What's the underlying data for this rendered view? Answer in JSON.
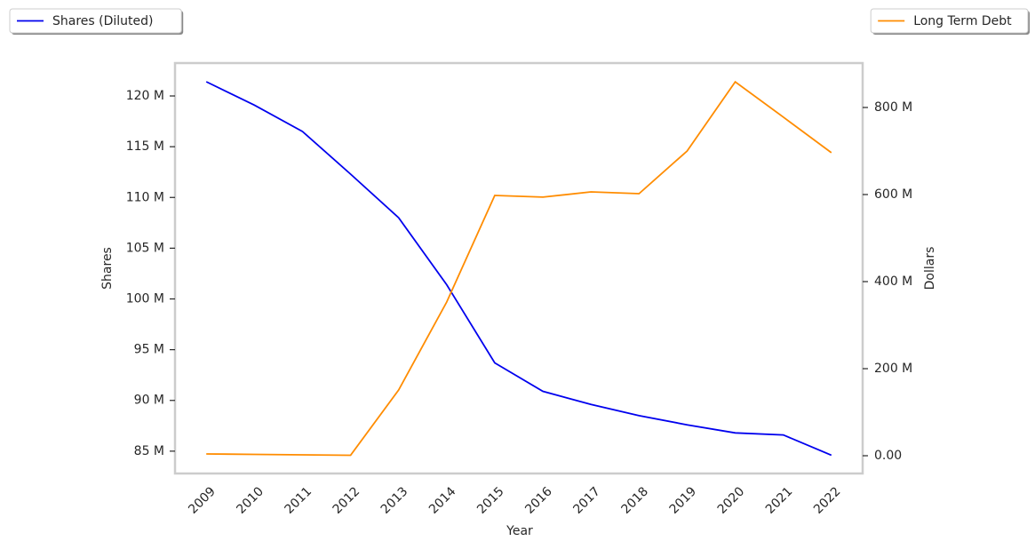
{
  "chart_data": {
    "type": "line",
    "xlabel": "Year",
    "ylabel": "Shares",
    "y2label": "Dollars",
    "categories": [
      "2009",
      "2010",
      "2011",
      "2012",
      "2013",
      "2014",
      "2015",
      "2016",
      "2017",
      "2018",
      "2019",
      "2020",
      "2021",
      "2022"
    ],
    "series": [
      {
        "name": "Shares (Diluted)",
        "color": "#0000ee",
        "axis": "y",
        "legend": "upper left",
        "values": [
          121400000,
          119100000,
          116500000,
          112300000,
          108000000,
          101400000,
          93700000,
          90900000,
          89600000,
          88500000,
          87600000,
          86800000,
          86600000,
          84600000
        ]
      },
      {
        "name": "Long Term Debt",
        "color": "#ff8c00",
        "axis": "y2",
        "legend": "upper right",
        "values": [
          4000000,
          3000000,
          2000000,
          1000000,
          151000000,
          353000000,
          598000000,
          594000000,
          606000000,
          602000000,
          700000000,
          859000000,
          778000000,
          696000000
        ]
      }
    ],
    "ylim": [
      82800000,
      123240000
    ],
    "yticks": [
      {
        "value": 85000000,
        "label": "85 M"
      },
      {
        "value": 90000000,
        "label": "90 M"
      },
      {
        "value": 95000000,
        "label": "95 M"
      },
      {
        "value": 100000000,
        "label": "100 M"
      },
      {
        "value": 105000000,
        "label": "105 M"
      },
      {
        "value": 110000000,
        "label": "110 M"
      },
      {
        "value": 115000000,
        "label": "115 M"
      },
      {
        "value": 120000000,
        "label": "120 M"
      }
    ],
    "y2lim": [
      -40800000,
      902000000
    ],
    "y2ticks": [
      {
        "value": 0,
        "label": "0.00"
      },
      {
        "value": 200000000,
        "label": "200 M"
      },
      {
        "value": 400000000,
        "label": "400 M"
      },
      {
        "value": 600000000,
        "label": "600 M"
      },
      {
        "value": 800000000,
        "label": "800 M"
      }
    ],
    "grid": false
  }
}
